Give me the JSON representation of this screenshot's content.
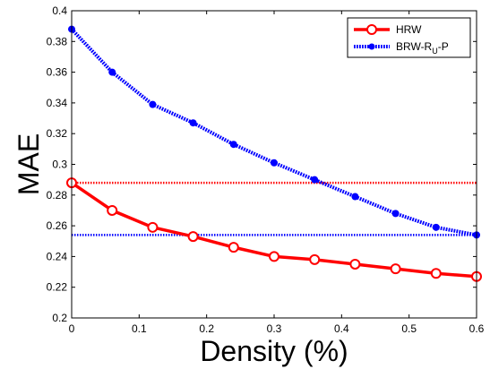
{
  "chart_data": {
    "type": "line",
    "title": "",
    "xlabel": "Density (%)",
    "ylabel": "MAE",
    "xlim": [
      0,
      0.6
    ],
    "ylim": [
      0.2,
      0.4
    ],
    "xticks": [
      0,
      0.1,
      0.2,
      0.3,
      0.4,
      0.5,
      0.6
    ],
    "yticks": [
      0.2,
      0.22,
      0.24,
      0.26,
      0.28,
      0.3,
      0.32,
      0.34,
      0.36,
      0.38,
      0.4
    ],
    "xtick_labels": [
      "0",
      "0.1",
      "0.2",
      "0.3",
      "0.4",
      "0.5",
      "0.6"
    ],
    "ytick_labels": [
      "0.2",
      "0.22",
      "0.24",
      "0.26",
      "0.28",
      "0.3",
      "0.32",
      "0.34",
      "0.36",
      "0.38",
      "0.4"
    ],
    "grid": false,
    "legend_position": "top-right",
    "series": [
      {
        "name": "HRW",
        "color": "#ff0000",
        "line_style": "solid",
        "marker": "circle-open",
        "x": [
          0,
          0.06,
          0.12,
          0.18,
          0.24,
          0.3,
          0.36,
          0.42,
          0.48,
          0.54,
          0.6
        ],
        "y": [
          0.288,
          0.27,
          0.259,
          0.253,
          0.246,
          0.24,
          0.238,
          0.235,
          0.232,
          0.229,
          0.227
        ]
      },
      {
        "name": "BRW-R",
        "name_subscript": "U",
        "name_suffix": "-P",
        "color": "#0000ff",
        "line_style": "dotted",
        "marker": "circle-filled",
        "x": [
          0,
          0.06,
          0.12,
          0.18,
          0.24,
          0.3,
          0.36,
          0.42,
          0.48,
          0.54,
          0.6
        ],
        "y": [
          0.388,
          0.36,
          0.339,
          0.327,
          0.313,
          0.301,
          0.29,
          0.279,
          0.268,
          0.259,
          0.254
        ]
      }
    ],
    "reference_lines": [
      {
        "y": 0.288,
        "color": "#ff0000",
        "line_style": "dotted"
      },
      {
        "y": 0.254,
        "color": "#0000ff",
        "line_style": "dotted"
      }
    ]
  }
}
